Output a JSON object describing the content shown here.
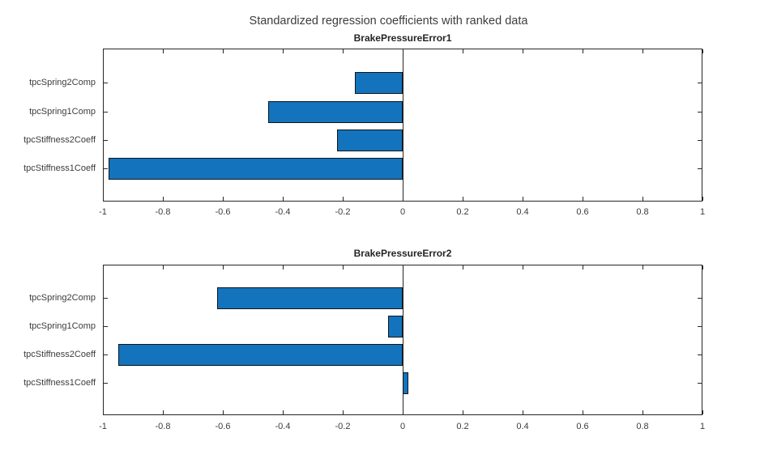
{
  "figure": {
    "title": "Standardized regression coefficients with ranked data"
  },
  "chart_data": [
    {
      "type": "bar",
      "orientation": "horizontal",
      "title": "BrakePressureError1",
      "categories": [
        "tpcSpring2Comp",
        "tpcSpring1Comp",
        "tpcStiffness2Coeff",
        "tpcStiffness1Coeff"
      ],
      "values": [
        -0.16,
        -0.45,
        -0.22,
        -0.98
      ],
      "xlim": [
        -1,
        1
      ],
      "x_ticks": [
        -1,
        -0.8,
        -0.6,
        -0.4,
        -0.2,
        0,
        0.2,
        0.4,
        0.6,
        0.8,
        1
      ],
      "x_tick_labels": [
        "-1",
        "-0.8",
        "-0.6",
        "-0.4",
        "-0.2",
        "0",
        "0.2",
        "0.4",
        "0.6",
        "0.8",
        "1"
      ],
      "grid": false,
      "box": true,
      "legend": null
    },
    {
      "type": "bar",
      "orientation": "horizontal",
      "title": "BrakePressureError2",
      "categories": [
        "tpcSpring2Comp",
        "tpcSpring1Comp",
        "tpcStiffness2Coeff",
        "tpcStiffness1Coeff"
      ],
      "values": [
        -0.62,
        -0.05,
        -0.95,
        0.02
      ],
      "xlim": [
        -1,
        1
      ],
      "x_ticks": [
        -1,
        -0.8,
        -0.6,
        -0.4,
        -0.2,
        0,
        0.2,
        0.4,
        0.6,
        0.8,
        1
      ],
      "x_tick_labels": [
        "-1",
        "-0.8",
        "-0.6",
        "-0.4",
        "-0.2",
        "0",
        "0.2",
        "0.4",
        "0.6",
        "0.8",
        "1"
      ],
      "grid": false,
      "box": true,
      "legend": null
    }
  ],
  "colors": {
    "background": "#ffffff",
    "bar_fill": "#1373bc",
    "bar_edge": "#10161d",
    "axis": "#262626",
    "tick_text": "#3c3c3c",
    "title_text": "#242424",
    "figure_title_text": "#3d3d3d"
  }
}
